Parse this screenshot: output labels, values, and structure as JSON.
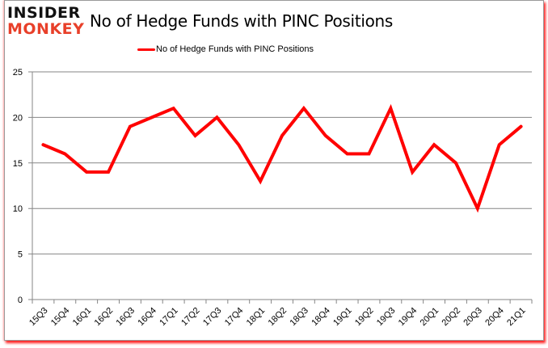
{
  "logo": {
    "line1": "INSIDER",
    "line2": "MONKEY"
  },
  "header": {
    "title": "No of Hedge Funds with PINC Positions"
  },
  "legend": {
    "label": "No of Hedge Funds with PINC Positions",
    "color": "#ff0000"
  },
  "chart_data": {
    "type": "line",
    "title": "No of Hedge Funds with PINC Positions",
    "xlabel": "",
    "ylabel": "",
    "ylim": [
      0,
      25
    ],
    "yticks": [
      0,
      5,
      10,
      15,
      20,
      25
    ],
    "grid": true,
    "legend_position": "top",
    "categories": [
      "15Q3",
      "15Q4",
      "16Q1",
      "16Q2",
      "16Q3",
      "16Q4",
      "17Q1",
      "17Q2",
      "17Q3",
      "17Q4",
      "18Q1",
      "18Q2",
      "18Q3",
      "18Q4",
      "19Q1",
      "19Q2",
      "19Q3",
      "19Q4",
      "20Q1",
      "20Q2",
      "20Q3",
      "20Q4",
      "21Q1"
    ],
    "series": [
      {
        "name": "No of Hedge Funds with PINC Positions",
        "color": "#ff0000",
        "values": [
          17,
          16,
          14,
          14,
          19,
          20,
          21,
          18,
          20,
          17,
          13,
          18,
          21,
          18,
          16,
          16,
          21,
          14,
          17,
          15,
          10,
          17,
          19
        ]
      }
    ]
  }
}
